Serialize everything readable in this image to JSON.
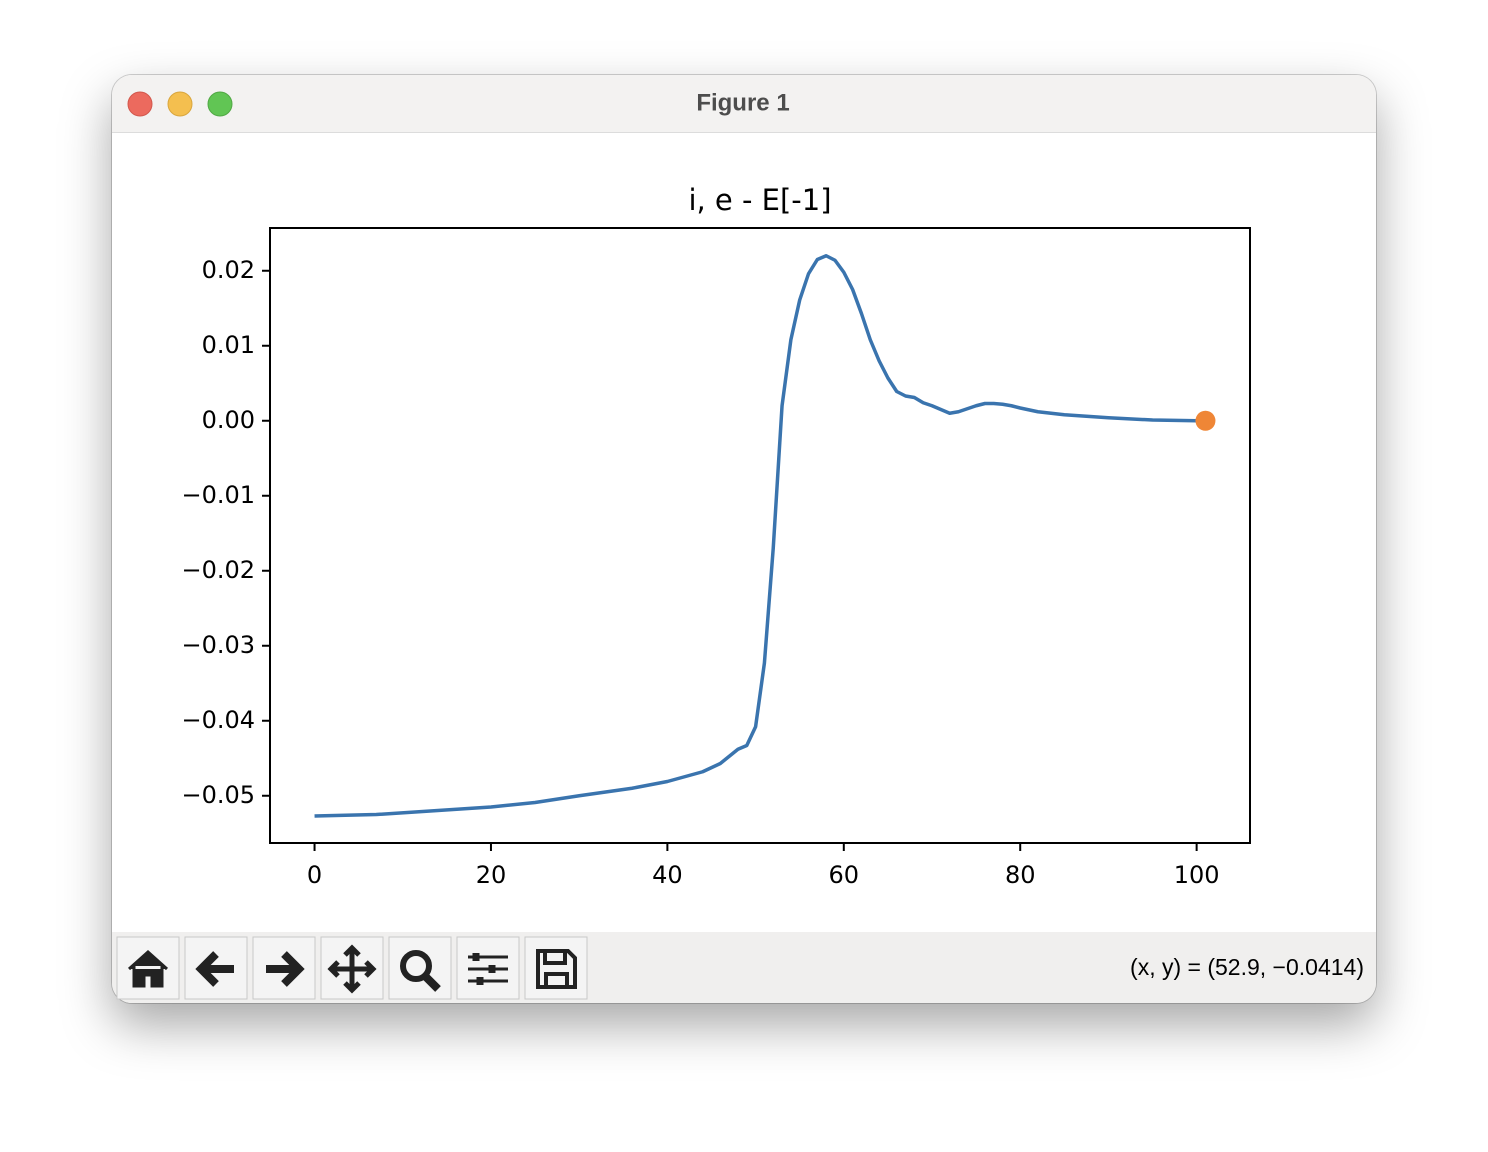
{
  "window": {
    "title": "Figure 1"
  },
  "chart_data": {
    "type": "line",
    "title": "i, e - E[-1]",
    "xlim": [
      -5.05,
      106.05
    ],
    "xticks": [
      0,
      20,
      40,
      60,
      80,
      100
    ],
    "ylim": [
      -0.0563,
      0.0257
    ],
    "yticks": [
      {
        "value": -0.05,
        "label": "−0.05"
      },
      {
        "value": -0.04,
        "label": "−0.04"
      },
      {
        "value": -0.03,
        "label": "−0.03"
      },
      {
        "value": -0.02,
        "label": "−0.02"
      },
      {
        "value": -0.01,
        "label": "−0.01"
      },
      {
        "value": 0,
        "label": "0.00"
      },
      0.01,
      0.02
    ],
    "grid": false,
    "series": [
      {
        "color": "#3a74ae",
        "marker": false,
        "x": [
          0,
          7,
          20,
          25,
          30,
          36,
          40,
          44,
          46,
          48,
          49,
          50,
          51,
          52,
          53,
          54,
          55,
          56,
          57,
          58,
          59,
          60,
          61,
          62,
          63,
          64,
          65,
          66,
          67,
          68,
          69,
          70,
          71,
          72,
          73,
          74,
          75,
          76,
          77,
          78,
          79,
          80,
          82,
          85,
          90,
          95,
          100
        ],
        "values": [
          -0.0527,
          -0.0525,
          -0.0515,
          -0.0509,
          -0.05,
          -0.049,
          -0.0481,
          -0.0468,
          -0.0457,
          -0.0438,
          -0.0433,
          -0.0408,
          -0.0323,
          -0.017,
          0.002,
          0.0108,
          0.0161,
          0.0196,
          0.0215,
          0.022,
          0.0214,
          0.0198,
          0.0175,
          0.0143,
          0.0108,
          0.008,
          0.0057,
          0.0039,
          0.0033,
          0.0031,
          0.0024,
          0.002,
          0.0015,
          0.001,
          0.0012,
          0.0016,
          0.002,
          0.0023,
          0.0023,
          0.0022,
          0.002,
          0.0017,
          0.0012,
          0.0008,
          0.0004,
          0.0001,
          0
        ]
      },
      {
        "color": "#ef8636",
        "marker": true,
        "x": [
          101
        ],
        "values": [
          0
        ]
      }
    ]
  },
  "toolbar": {
    "status": "(x, y) = (52.9, −0.0414)"
  }
}
